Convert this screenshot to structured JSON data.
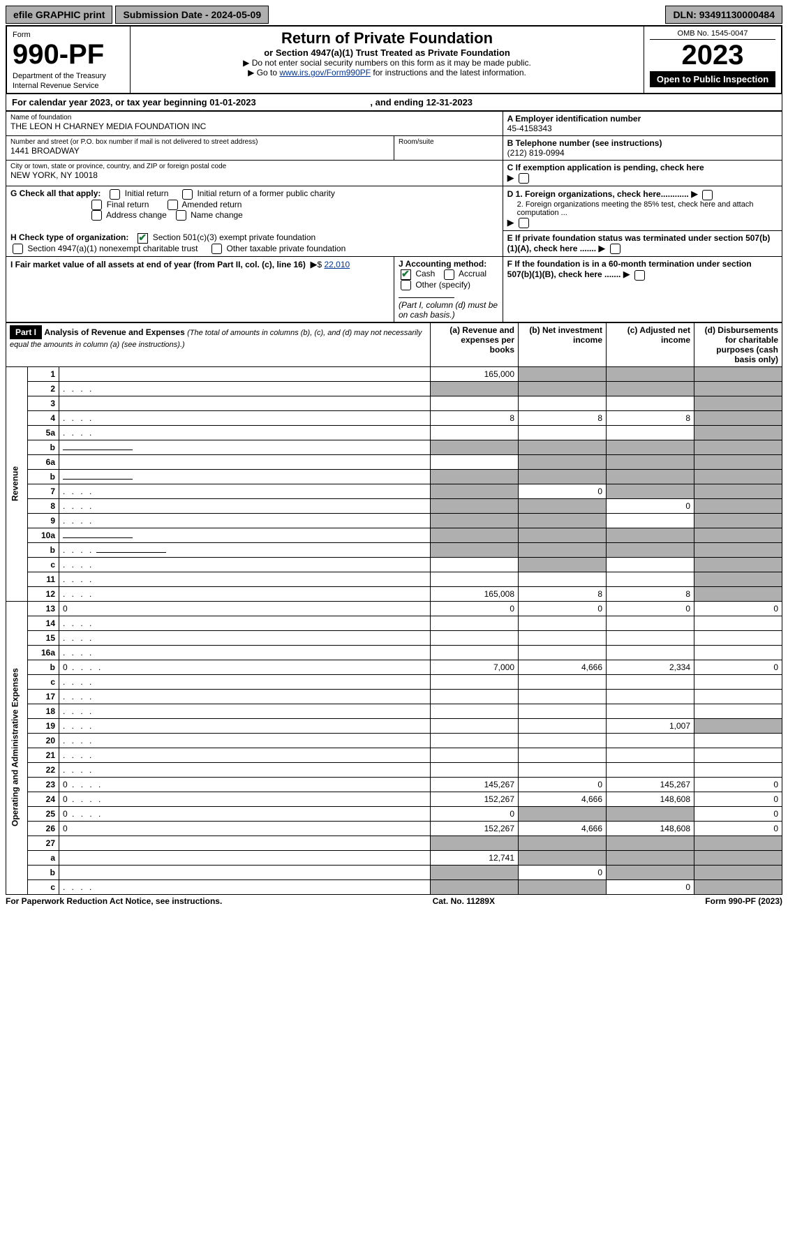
{
  "topbar": {
    "efile": "efile GRAPHIC print",
    "submission_label": "Submission Date - 2024-05-09",
    "dln": "DLN: 93491130000484"
  },
  "header": {
    "form_word": "Form",
    "form_num": "990-PF",
    "dept": "Department of the Treasury",
    "irs": "Internal Revenue Service",
    "title": "Return of Private Foundation",
    "subtitle": "or Section 4947(a)(1) Trust Treated as Private Foundation",
    "inst1": "▶ Do not enter social security numbers on this form as it may be made public.",
    "inst2_pre": "▶ Go to ",
    "inst2_link": "www.irs.gov/Form990PF",
    "inst2_post": " for instructions and the latest information.",
    "omb": "OMB No. 1545-0047",
    "year": "2023",
    "open": "Open to Public Inspection"
  },
  "calendar": {
    "text_pre": "For calendar year 2023, or tax year beginning ",
    "begin": "01-01-2023",
    "text_mid": " , and ending ",
    "end": "12-31-2023"
  },
  "entity": {
    "name_label": "Name of foundation",
    "name": "THE LEON H CHARNEY MEDIA FOUNDATION INC",
    "addr_label": "Number and street (or P.O. box number if mail is not delivered to street address)",
    "addr": "1441 BROADWAY",
    "room_label": "Room/suite",
    "city_label": "City or town, state or province, country, and ZIP or foreign postal code",
    "city": "NEW YORK, NY  10018",
    "ein_label": "A Employer identification number",
    "ein": "45-4158343",
    "phone_label": "B Telephone number (see instructions)",
    "phone": "(212) 819-0994",
    "c_label": "C If exemption application is pending, check here",
    "d1_label": "D 1. Foreign organizations, check here............",
    "d2_label": "2. Foreign organizations meeting the 85% test, check here and attach computation ...",
    "e_label": "E  If private foundation status was terminated under section 507(b)(1)(A), check here .......",
    "f_label": "F  If the foundation is in a 60-month termination under section 507(b)(1)(B), check here .......",
    "g_label": "G Check all that apply:",
    "g_opts": {
      "initial": "Initial return",
      "initial_former": "Initial return of a former public charity",
      "final": "Final return",
      "amended": "Amended return",
      "address": "Address change",
      "name": "Name change"
    },
    "h_label": "H Check type of organization:",
    "h_opts": {
      "501c3": "Section 501(c)(3) exempt private foundation",
      "4947": "Section 4947(a)(1) nonexempt charitable trust",
      "other_tax": "Other taxable private foundation"
    },
    "i_label": "I Fair market value of all assets at end of year (from Part II, col. (c), line 16)",
    "i_value": "22,010",
    "j_label": "J Accounting method:",
    "j_cash": "Cash",
    "j_accrual": "Accrual",
    "j_other": "Other (specify)",
    "j_note": "(Part I, column (d) must be on cash basis.)"
  },
  "part1": {
    "label": "Part I",
    "title": "Analysis of Revenue and Expenses",
    "title_note": "(The total of amounts in columns (b), (c), and (d) may not necessarily equal the amounts in column (a) (see instructions).)",
    "col_a": "(a)   Revenue and expenses per books",
    "col_b": "(b)   Net investment income",
    "col_c": "(c)   Adjusted net income",
    "col_d": "(d)   Disbursements for charitable purposes (cash basis only)",
    "revenue_label": "Revenue",
    "expenses_label": "Operating and Administrative Expenses",
    "rows": [
      {
        "n": "1",
        "d": "",
        "a": "165,000",
        "b": "",
        "c": "",
        "shade_b": true,
        "shade_c": true,
        "shade_d": true
      },
      {
        "n": "2",
        "d": "",
        "dots": true,
        "a": "",
        "b": "",
        "c": "",
        "shade_a": true,
        "shade_b": true,
        "shade_c": true,
        "shade_d": true
      },
      {
        "n": "3",
        "d": "",
        "a": "",
        "b": "",
        "c": "",
        "shade_d": true
      },
      {
        "n": "4",
        "d": "",
        "dots": true,
        "a": "8",
        "b": "8",
        "c": "8",
        "shade_d": true
      },
      {
        "n": "5a",
        "d": "",
        "dots": true,
        "a": "",
        "b": "",
        "c": "",
        "shade_d": true
      },
      {
        "n": "b",
        "d": "",
        "underline": true,
        "a": "",
        "b": "",
        "c": "",
        "shade_a": true,
        "shade_b": true,
        "shade_c": true,
        "shade_d": true
      },
      {
        "n": "6a",
        "d": "",
        "a": "",
        "b": "",
        "c": "",
        "shade_b": true,
        "shade_c": true,
        "shade_d": true
      },
      {
        "n": "b",
        "d": "",
        "underline": true,
        "a": "",
        "b": "",
        "c": "",
        "shade_a": true,
        "shade_b": true,
        "shade_c": true,
        "shade_d": true
      },
      {
        "n": "7",
        "d": "",
        "dots": true,
        "a": "",
        "b": "0",
        "c": "",
        "shade_a": true,
        "shade_c": true,
        "shade_d": true
      },
      {
        "n": "8",
        "d": "",
        "dots": true,
        "a": "",
        "b": "",
        "c": "0",
        "shade_a": true,
        "shade_b": true,
        "shade_d": true
      },
      {
        "n": "9",
        "d": "",
        "dots": true,
        "a": "",
        "b": "",
        "c": "",
        "shade_a": true,
        "shade_b": true,
        "shade_d": true
      },
      {
        "n": "10a",
        "d": "",
        "underline": true,
        "a": "",
        "b": "",
        "c": "",
        "shade_a": true,
        "shade_b": true,
        "shade_c": true,
        "shade_d": true
      },
      {
        "n": "b",
        "d": "",
        "dots": true,
        "underline": true,
        "a": "",
        "b": "",
        "c": "",
        "shade_a": true,
        "shade_b": true,
        "shade_c": true,
        "shade_d": true
      },
      {
        "n": "c",
        "d": "",
        "dots": true,
        "a": "",
        "b": "",
        "c": "",
        "shade_b": true,
        "shade_d": true
      },
      {
        "n": "11",
        "d": "",
        "dots": true,
        "a": "",
        "b": "",
        "c": "",
        "shade_d": true
      },
      {
        "n": "12",
        "d": "",
        "dots": true,
        "a": "165,008",
        "b": "8",
        "c": "8",
        "shade_d": true
      },
      {
        "n": "13",
        "d": "0",
        "a": "0",
        "b": "0",
        "c": "0"
      },
      {
        "n": "14",
        "d": "",
        "dots": true,
        "a": "",
        "b": "",
        "c": ""
      },
      {
        "n": "15",
        "d": "",
        "dots": true,
        "a": "",
        "b": "",
        "c": ""
      },
      {
        "n": "16a",
        "d": "",
        "dots": true,
        "a": "",
        "b": "",
        "c": ""
      },
      {
        "n": "b",
        "d": "0",
        "dots": true,
        "a": "7,000",
        "b": "4,666",
        "c": "2,334"
      },
      {
        "n": "c",
        "d": "",
        "dots": true,
        "a": "",
        "b": "",
        "c": ""
      },
      {
        "n": "17",
        "d": "",
        "dots": true,
        "a": "",
        "b": "",
        "c": ""
      },
      {
        "n": "18",
        "d": "",
        "dots": true,
        "a": "",
        "b": "",
        "c": ""
      },
      {
        "n": "19",
        "d": "",
        "dots": true,
        "a": "",
        "b": "",
        "c": "1,007",
        "shade_d": true
      },
      {
        "n": "20",
        "d": "",
        "dots": true,
        "a": "",
        "b": "",
        "c": ""
      },
      {
        "n": "21",
        "d": "",
        "dots": true,
        "a": "",
        "b": "",
        "c": ""
      },
      {
        "n": "22",
        "d": "",
        "dots": true,
        "a": "",
        "b": "",
        "c": ""
      },
      {
        "n": "23",
        "d": "0",
        "dots": true,
        "a": "145,267",
        "b": "0",
        "c": "145,267"
      },
      {
        "n": "24",
        "d": "0",
        "dots": true,
        "a": "152,267",
        "b": "4,666",
        "c": "148,608"
      },
      {
        "n": "25",
        "d": "0",
        "dots": true,
        "a": "0",
        "b": "",
        "c": "",
        "shade_b": true,
        "shade_c": true
      },
      {
        "n": "26",
        "d": "0",
        "a": "152,267",
        "b": "4,666",
        "c": "148,608"
      },
      {
        "n": "27",
        "d": "",
        "a": "",
        "b": "",
        "c": "",
        "shade_a": true,
        "shade_b": true,
        "shade_c": true,
        "shade_d": true
      },
      {
        "n": "a",
        "d": "",
        "a": "12,741",
        "b": "",
        "c": "",
        "shade_b": true,
        "shade_c": true,
        "shade_d": true
      },
      {
        "n": "b",
        "d": "",
        "a": "",
        "b": "0",
        "c": "",
        "shade_a": true,
        "shade_c": true,
        "shade_d": true
      },
      {
        "n": "c",
        "d": "",
        "dots": true,
        "a": "",
        "b": "",
        "c": "0",
        "shade_a": true,
        "shade_b": true,
        "shade_d": true
      }
    ]
  },
  "footer": {
    "left": "For Paperwork Reduction Act Notice, see instructions.",
    "mid": "Cat. No. 11289X",
    "right": "Form 990-PF (2023)"
  }
}
